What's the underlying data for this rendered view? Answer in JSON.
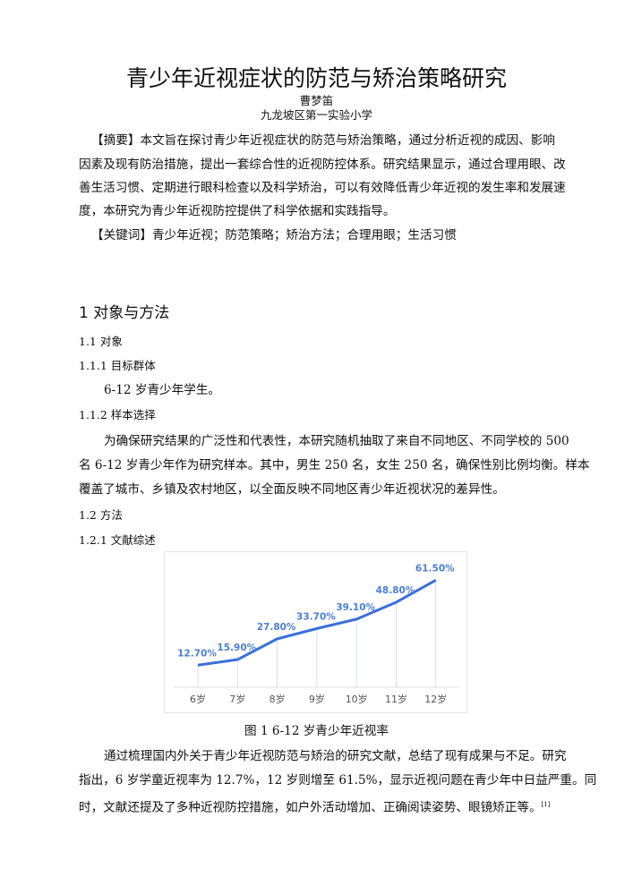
{
  "title": "青少年近视症状的防范与矫治策略研究",
  "author": "曹梦笛",
  "affiliation": "九龙坡区第一实验小学",
  "abstract_lines": [
    "【摘要】本文旨在探讨青少年近视症状的防范与矫治策略，通过分析近视的成因、影响",
    "因素及现有防治措施，提出一套综合性的近视防控体系。研究结果显示，通过合理用眼、改",
    "善生活习惯、定期进行眼科检查以及科学矫治，可以有效降低青少年近视的发生率和发展速",
    "度，本研究为青少年近视防控提供了科学依据和实践指导。"
  ],
  "keywords": "【关键词】青少年近视；防范策略；矫治方法；合理用眼；生活习惯",
  "section1": {
    "heading": "1  对象与方法",
    "s11": "1.1  对象",
    "s111": "1.1.1  目标群体",
    "s111_text": "6-12 岁青少年学生。",
    "s112": "1.1.2  样本选择",
    "s112_lines": [
      "为确保研究结果的广泛性和代表性，本研究随机抽取了来自不同地区、不同学校的 500",
      "名 6-12 岁青少年作为研究样本。其中，男生 250 名，女生 250 名，确保性别比例均衡。样本",
      "覆盖了城市、乡镇及农村地区，以全面反映不同地区青少年近视状况的差异性。"
    ],
    "s12": "1.2  方法",
    "s121": "1.2.1  文献综述",
    "figure_caption": "图 1  6-12 岁青少年近视率",
    "s121_lines": [
      "通过梳理国内外关于青少年近视防范与矫治的研究文献，总结了现有成果与不足。研究",
      "指出，6 岁学童近视率为 12.7%，12 岁则增至 61.5%，显示近视问题在青少年中日益严重。同",
      "时，文献还提及了多种近视防控措施，如户外活动增加、正确阅读姿势、眼镜矫正等。"
    ],
    "citation": "[1]"
  },
  "chart_data": {
    "type": "line",
    "categories": [
      "6岁",
      "7岁",
      "8岁",
      "9岁",
      "10岁",
      "11岁",
      "12岁"
    ],
    "values": [
      12.7,
      15.9,
      27.8,
      33.7,
      39.1,
      48.8,
      61.5
    ],
    "data_labels": [
      "12.70%",
      "15.90%",
      "27.80%",
      "33.70%",
      "39.10%",
      "48.80%",
      "61.50%"
    ],
    "title": "",
    "xlabel": "",
    "ylabel": "",
    "ylim": [
      0,
      65
    ],
    "grid": false,
    "line_color": "#3a6fdc",
    "label_color": "#4a7fd6",
    "drop_line_color": "#c9d6ec"
  }
}
